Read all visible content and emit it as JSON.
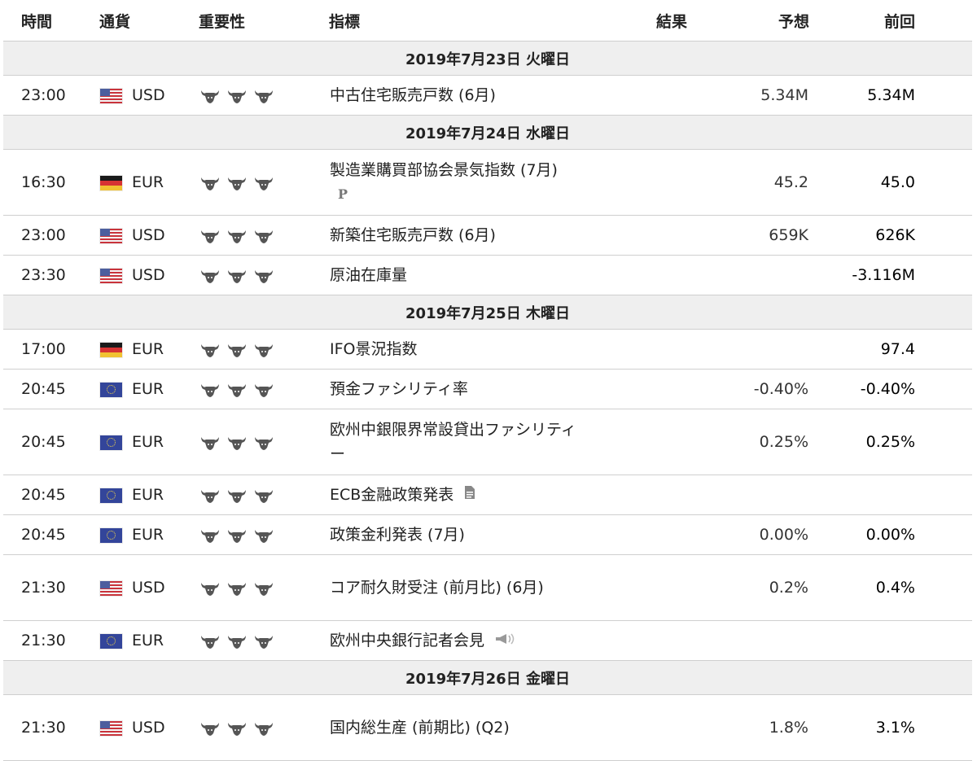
{
  "headers": {
    "time": "時間",
    "currency": "通貨",
    "importance": "重要性",
    "indicator": "指標",
    "result": "結果",
    "forecast": "予想",
    "previous": "前回"
  },
  "days": [
    {
      "date": "2019年7月23日 火曜日",
      "events": [
        {
          "time": "23:00",
          "flag": "us",
          "currency": "USD",
          "indicator": "中古住宅販売戸数 (6月)",
          "result": "",
          "forecast": "5.34M",
          "previous": "5.34M",
          "icon": ""
        }
      ]
    },
    {
      "date": "2019年7月24日 水曜日",
      "events": [
        {
          "time": "16:30",
          "flag": "de",
          "currency": "EUR",
          "indicator": "製造業購買部協会景気指数 (7月)",
          "result": "",
          "forecast": "45.2",
          "previous": "45.0",
          "icon": "P"
        },
        {
          "time": "23:00",
          "flag": "us",
          "currency": "USD",
          "indicator": "新築住宅販売戸数 (6月)",
          "result": "",
          "forecast": "659K",
          "previous": "626K",
          "icon": ""
        },
        {
          "time": "23:30",
          "flag": "us",
          "currency": "USD",
          "indicator": "原油在庫量",
          "result": "",
          "forecast": "",
          "previous": "-3.116M",
          "icon": ""
        }
      ]
    },
    {
      "date": "2019年7月25日 木曜日",
      "events": [
        {
          "time": "17:00",
          "flag": "de",
          "currency": "EUR",
          "indicator": "IFO景況指数",
          "result": "",
          "forecast": "",
          "previous": "97.4",
          "icon": ""
        },
        {
          "time": "20:45",
          "flag": "eu",
          "currency": "EUR",
          "indicator": "預金ファシリティ率",
          "result": "",
          "forecast": "-0.40%",
          "previous": "-0.40%",
          "icon": ""
        },
        {
          "time": "20:45",
          "flag": "eu",
          "currency": "EUR",
          "indicator": "欧州中銀限界常設貸出ファシリティー",
          "result": "",
          "forecast": "0.25%",
          "previous": "0.25%",
          "icon": ""
        },
        {
          "time": "20:45",
          "flag": "eu",
          "currency": "EUR",
          "indicator": "ECB金融政策発表",
          "result": "",
          "forecast": "",
          "previous": "",
          "icon": "document"
        },
        {
          "time": "20:45",
          "flag": "eu",
          "currency": "EUR",
          "indicator": "政策金利発表 (7月)",
          "result": "",
          "forecast": "0.00%",
          "previous": "0.00%",
          "icon": ""
        },
        {
          "time": "21:30",
          "flag": "us",
          "currency": "USD",
          "indicator": "コア耐久財受注 (前月比) (6月)",
          "result": "",
          "forecast": "0.2%",
          "previous": "0.4%",
          "icon": ""
        },
        {
          "time": "21:30",
          "flag": "eu",
          "currency": "EUR",
          "indicator": "欧州中央銀行記者会見",
          "result": "",
          "forecast": "",
          "previous": "",
          "icon": "speech"
        }
      ]
    },
    {
      "date": "2019年7月26日 金曜日",
      "events": [
        {
          "time": "21:30",
          "flag": "us",
          "currency": "USD",
          "indicator": "国内総生産 (前期比) (Q2)",
          "result": "",
          "forecast": "1.8%",
          "previous": "3.1%",
          "icon": ""
        }
      ]
    }
  ],
  "importance_level": 3,
  "importance_icon": "bull-icon"
}
